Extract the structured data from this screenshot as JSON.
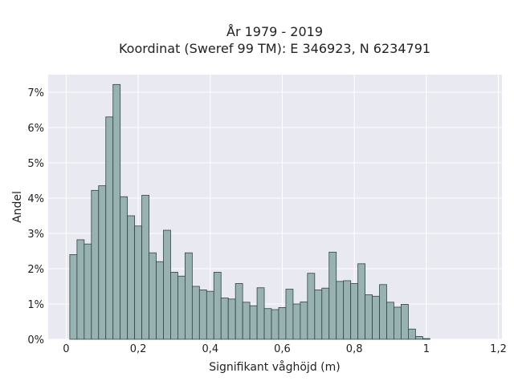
{
  "chart_data": {
    "type": "bar",
    "title": "År 1979 - 2019",
    "subtitle": "Koordinat (Sweref 99 TM): E 346923, N 6234791",
    "xlabel": "Signifikant våghöjd (m)",
    "ylabel": "Andel",
    "xlim": [
      -0.05,
      1.21
    ],
    "ylim": [
      0,
      7.5
    ],
    "bin_width": 0.02,
    "bin_start": 0.01,
    "grid": true,
    "legend": "none",
    "x_ticks": [
      {
        "value": 0,
        "label": "0"
      },
      {
        "value": 0.2,
        "label": "0,2"
      },
      {
        "value": 0.4,
        "label": "0,4"
      },
      {
        "value": 0.6,
        "label": "0,6"
      },
      {
        "value": 0.8,
        "label": "0,8"
      },
      {
        "value": 1.0,
        "label": "1"
      },
      {
        "value": 1.2,
        "label": "1,2"
      }
    ],
    "y_ticks": [
      {
        "value": 0,
        "label": "0%"
      },
      {
        "value": 1,
        "label": "1%"
      },
      {
        "value": 2,
        "label": "2%"
      },
      {
        "value": 3,
        "label": "3%"
      },
      {
        "value": 4,
        "label": "4%"
      },
      {
        "value": 5,
        "label": "5%"
      },
      {
        "value": 6,
        "label": "6%"
      },
      {
        "value": 7,
        "label": "7%"
      }
    ],
    "values": [
      2.4,
      2.82,
      2.7,
      4.22,
      4.35,
      6.3,
      7.22,
      4.04,
      3.5,
      3.21,
      4.08,
      2.45,
      2.2,
      3.09,
      1.9,
      1.79,
      2.45,
      1.5,
      1.4,
      1.36,
      1.9,
      1.17,
      1.14,
      1.58,
      1.05,
      0.95,
      1.46,
      0.87,
      0.84,
      0.9,
      1.42,
      1.0,
      1.06,
      1.87,
      1.4,
      1.45,
      2.47,
      1.64,
      1.66,
      1.58,
      2.14,
      1.26,
      1.22,
      1.55,
      1.05,
      0.91,
      0.99,
      0.29,
      0.08,
      0.02
    ],
    "colors": {
      "bar_fill": "#98b1b1",
      "bar_stroke": "#2f4545",
      "plot_bg": "#e9e9f2",
      "grid": "#ffffff",
      "text": "#222222"
    }
  }
}
